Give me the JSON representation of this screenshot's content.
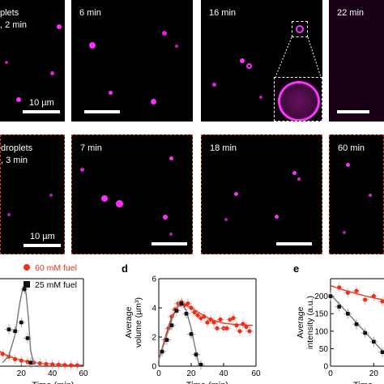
{
  "figure": {
    "row1": {
      "panel_texts": [
        [
          "plets",
          ", 2 min"
        ],
        [
          "6 min"
        ],
        [
          "16 min"
        ],
        [
          "22 min"
        ]
      ],
      "scale_label": "10 µm"
    },
    "row2": {
      "panel_texts": [
        [
          "droplets",
          ", 3 min"
        ],
        [
          "7 min"
        ],
        [
          "18 min"
        ],
        [
          "60 min"
        ]
      ],
      "scale_label": "10 µm"
    }
  },
  "colors": {
    "droplet": "#ff2dff",
    "red_series": "#e8321e",
    "black_series": "#111111",
    "panel_border_row2": "#d23a2a"
  },
  "chart_data": [
    {
      "type": "line",
      "panel_letter": "",
      "xlabel": "Time (min)",
      "ylabel": "",
      "xlim": [
        0,
        60
      ],
      "ylim": [
        0,
        5
      ],
      "xticks": [
        20,
        40,
        60
      ],
      "legend_position": "top-right",
      "series": [
        {
          "name": "60 mM fuel",
          "color": "#e8321e",
          "marker": "circle",
          "x": [
            8,
            12,
            16,
            20,
            24,
            28,
            32,
            36,
            40,
            44,
            48,
            52,
            56
          ],
          "y": [
            0.7,
            0.55,
            0.4,
            0.32,
            0.25,
            0.2,
            0.16,
            0.12,
            0.1,
            0.08,
            0.06,
            0.05,
            0.05
          ],
          "fit": {
            "x": [
              5,
              10,
              15,
              20,
              25,
              30,
              35,
              40,
              45,
              50,
              55,
              60
            ],
            "y": [
              0.9,
              0.65,
              0.47,
              0.35,
              0.26,
              0.2,
              0.15,
              0.12,
              0.1,
              0.08,
              0.07,
              0.06
            ]
          }
        },
        {
          "name": "25 mM fuel",
          "color": "#111111",
          "marker": "square",
          "x": [
            12,
            16,
            20,
            22,
            24,
            26
          ],
          "y": [
            2.1,
            2.0,
            2.5,
            4.4,
            1.6,
            0.2
          ],
          "fit": {
            "x": [
              8,
              12,
              16,
              19,
              21,
              23,
              24.5,
              26,
              28
            ],
            "y": [
              0.2,
              0.6,
              1.8,
              3.6,
              4.5,
              4.2,
              2.8,
              0.9,
              0.1
            ]
          }
        }
      ]
    },
    {
      "type": "line",
      "panel_letter": "d",
      "xlabel": "Time (min)",
      "ylabel": "Average volume (µm³)",
      "xlim": [
        0,
        60
      ],
      "ylim": [
        0,
        6
      ],
      "xticks": [
        0,
        20,
        40,
        60
      ],
      "yticks": [
        0,
        2,
        4,
        6
      ],
      "series": [
        {
          "name": "",
          "color": "#e8321e",
          "marker": "circle",
          "x": [
            2,
            4,
            6,
            8,
            10,
            12,
            14,
            16,
            18,
            20,
            22,
            24,
            26,
            28,
            30,
            32,
            34,
            36,
            38,
            40,
            42,
            44,
            46,
            48,
            50,
            52,
            54,
            56
          ],
          "y": [
            1.0,
            1.8,
            2.6,
            3.4,
            3.9,
            4.3,
            4.4,
            4.2,
            4.3,
            4.0,
            3.7,
            3.5,
            3.3,
            3.4,
            3.0,
            3.2,
            3.0,
            2.6,
            3.2,
            2.6,
            2.6,
            3.2,
            3.3,
            2.8,
            2.4,
            2.9,
            2.7,
            2.4
          ],
          "fit": {
            "x": [
              0,
              4,
              8,
              12,
              16,
              20,
              26,
              32,
              40,
              48,
              56,
              58
            ],
            "y": [
              0.4,
              2.0,
              3.4,
              4.1,
              4.2,
              4.0,
              3.6,
              3.2,
              2.95,
              2.85,
              2.8,
              2.8
            ]
          }
        },
        {
          "name": "",
          "color": "#111111",
          "marker": "square",
          "x": [
            2,
            5,
            8,
            11,
            14,
            17,
            20,
            23,
            26
          ],
          "y": [
            1.0,
            1.8,
            2.8,
            3.8,
            4.3,
            3.6,
            2.2,
            0.8,
            0.1
          ],
          "fit": {
            "x": [
              0,
              4,
              8,
              12,
              14,
              17,
              20,
              22,
              24,
              25
            ],
            "y": [
              0.5,
              1.8,
              3.2,
              4.2,
              4.3,
              3.8,
              2.6,
              1.5,
              0.5,
              0.0
            ]
          }
        }
      ]
    },
    {
      "type": "line",
      "panel_letter": "e",
      "xlabel": "Time",
      "ylabel": "Average intensity (a.u.)",
      "xlim": [
        0,
        30
      ],
      "ylim": [
        0,
        250
      ],
      "xticks": [
        0,
        20
      ],
      "yticks": [
        0,
        50,
        100,
        150,
        200
      ],
      "series": [
        {
          "name": "",
          "color": "#e8321e",
          "marker": "circle",
          "x": [
            4,
            8,
            12,
            16,
            20,
            24
          ],
          "y": [
            225,
            210,
            215,
            190,
            200,
            185
          ],
          "fit": {
            "x": [
              0,
              6,
              12,
              18,
              24,
              30
            ],
            "y": [
              230,
              218,
              207,
              198,
              190,
              183
            ]
          }
        },
        {
          "name": "",
          "color": "#111111",
          "marker": "square",
          "x": [
            0,
            4,
            8,
            12,
            16,
            20,
            24
          ],
          "y": [
            200,
            170,
            150,
            120,
            95,
            70,
            40
          ],
          "fit": {
            "x": [
              0,
              26
            ],
            "y": [
              205,
              30
            ]
          }
        }
      ]
    }
  ]
}
